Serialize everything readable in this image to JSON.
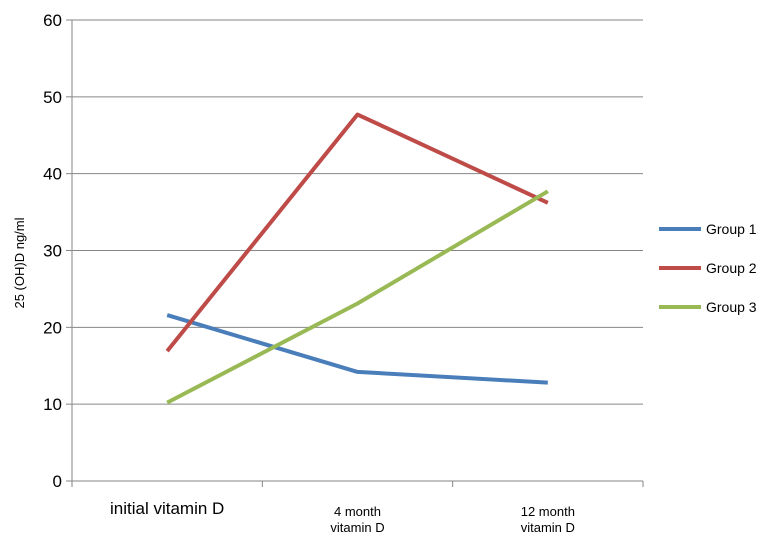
{
  "chart_data": {
    "type": "line",
    "categories": [
      [
        "initial vitamin D"
      ],
      [
        "4 month",
        "vitamin D"
      ],
      [
        "12 month",
        "vitamin D"
      ]
    ],
    "series": [
      {
        "name": "Group 1",
        "color": "#4a7ebb",
        "values": [
          21.6,
          14.2,
          12.8
        ]
      },
      {
        "name": "Group 2",
        "color": "#be4b48",
        "values": [
          16.9,
          47.7,
          36.2
        ]
      },
      {
        "name": "Group 3",
        "color": "#98b954",
        "values": [
          10.2,
          23.1,
          37.7
        ]
      }
    ],
    "ylabel": "25 (OH)D ng/ml",
    "xlabel": "",
    "title": "",
    "ylim": [
      0,
      60
    ],
    "yticks": [
      0,
      10,
      20,
      30,
      40,
      50,
      60
    ],
    "grid": true,
    "legend": "right"
  }
}
